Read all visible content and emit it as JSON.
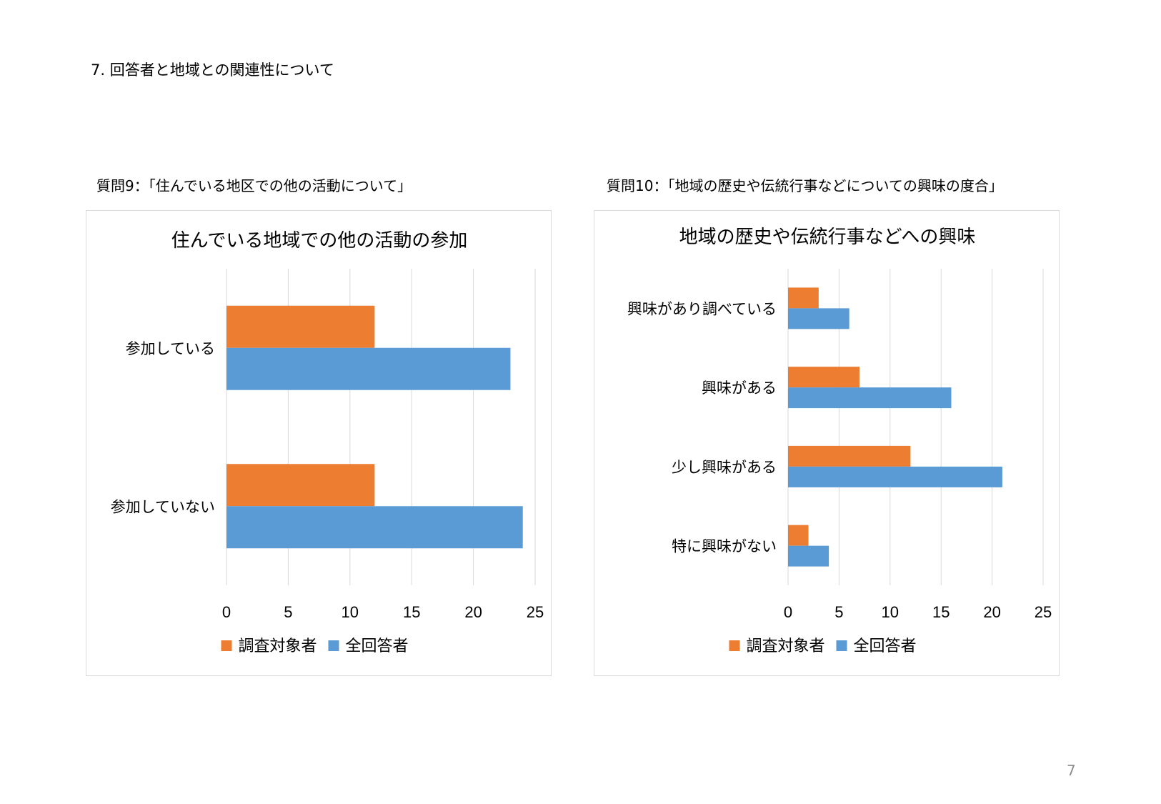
{
  "heading": "7.  回答者と地域との関連性について",
  "page_number": "7",
  "captions": [
    "質問9：「住んでいる地区での他の活動について」",
    "質問10：「地域の歴史や伝統行事などについての興味の度合」"
  ],
  "colors": {
    "series1": "#ED7D31",
    "series2": "#5B9BD5",
    "grid": "#d9d9d9"
  },
  "chart_data": [
    {
      "type": "bar",
      "orientation": "horizontal",
      "title": "住んでいる地域での他の活動の参加",
      "categories": [
        "参加している",
        "参加していない"
      ],
      "series": [
        {
          "name": "調査対象者",
          "values": [
            12,
            12
          ]
        },
        {
          "name": "全回答者",
          "values": [
            23,
            24
          ]
        }
      ],
      "xlim": [
        0,
        25
      ],
      "xticks": [
        "0",
        "5",
        "10",
        "15",
        "20",
        "25"
      ],
      "grid": true,
      "legend": "bottom"
    },
    {
      "type": "bar",
      "orientation": "horizontal",
      "title": "地域の歴史や伝統行事などへの興味",
      "categories": [
        "興味があり調べている",
        "興味がある",
        "少し興味がある",
        "特に興味がない"
      ],
      "series": [
        {
          "name": "調査対象者",
          "values": [
            3,
            7,
            12,
            2
          ]
        },
        {
          "name": "全回答者",
          "values": [
            6,
            16,
            21,
            4
          ]
        }
      ],
      "xlim": [
        0,
        25
      ],
      "xticks": [
        "0",
        "5",
        "10",
        "15",
        "20",
        "25"
      ],
      "grid": true,
      "legend": "bottom"
    }
  ]
}
